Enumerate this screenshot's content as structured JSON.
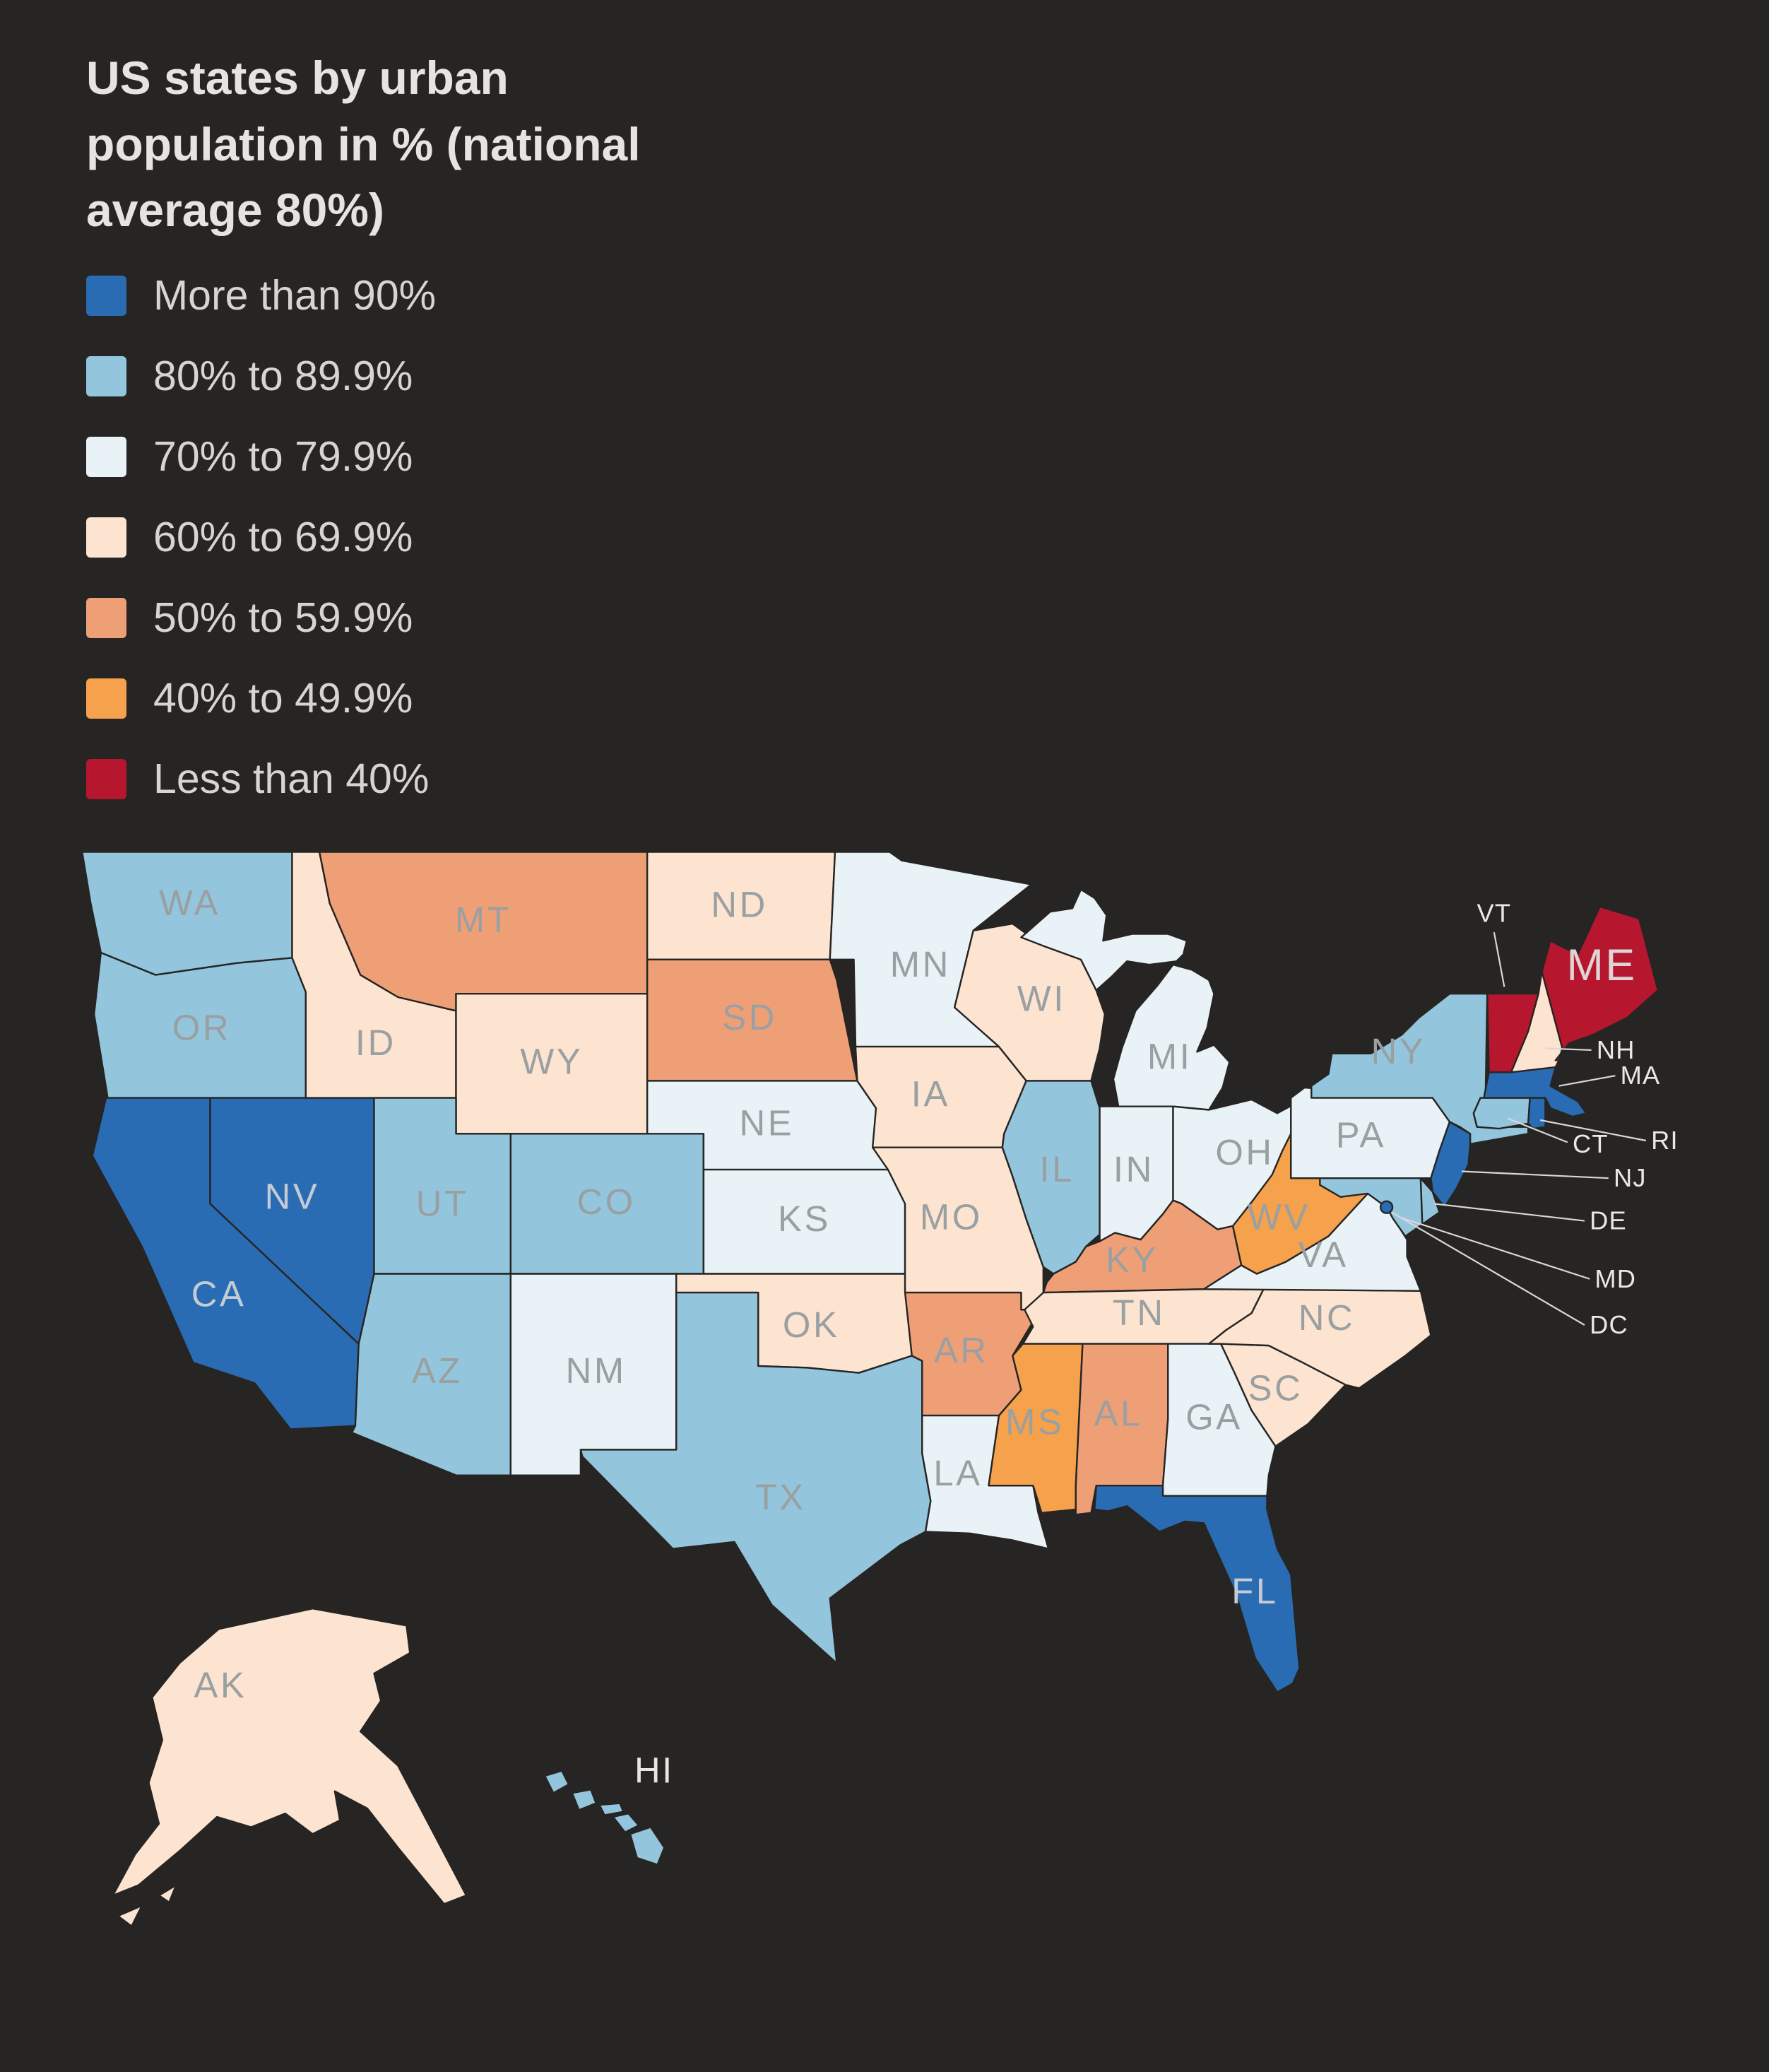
{
  "title": "US states by urban population in % (national average 80%)",
  "colors": {
    "background": "#272523",
    "title_text": "#e6e4e1",
    "legend_text": "#d7d5d2",
    "state_border": "#272523",
    "label_on_light": "#9aa0a2",
    "label_on_dark": "#c3cbd3",
    "leader_label": "#eae8e5",
    "leader_line": "#d8d8d8"
  },
  "legend": [
    {
      "label": "More than 90%",
      "color": "#2a6cb3"
    },
    {
      "label": "80% to 89.9%",
      "color": "#93c5dd"
    },
    {
      "label": "70% to 79.9%",
      "color": "#e9f3f7"
    },
    {
      "label": "60% to 69.9%",
      "color": "#fce4d1"
    },
    {
      "label": "50% to 59.9%",
      "color": "#ef9f76"
    },
    {
      "label": "40% to 49.9%",
      "color": "#f6a14b"
    },
    {
      "label": "Less than 40%",
      "color": "#b6172f"
    }
  ],
  "chart_data": {
    "type": "heatmap",
    "subtype": "choropleth-us-states",
    "title": "US states by urban population in % (national average 80%)",
    "national_average_pct": 80,
    "categories": [
      "More than 90%",
      "80% to 89.9%",
      "70% to 79.9%",
      "60% to 69.9%",
      "50% to 59.9%",
      "40% to 49.9%",
      "Less than 40%"
    ],
    "states": [
      {
        "abbr": "WA",
        "category": "80% to 89.9%"
      },
      {
        "abbr": "OR",
        "category": "80% to 89.9%"
      },
      {
        "abbr": "CA",
        "category": "More than 90%"
      },
      {
        "abbr": "NV",
        "category": "More than 90%"
      },
      {
        "abbr": "ID",
        "category": "60% to 69.9%"
      },
      {
        "abbr": "MT",
        "category": "50% to 59.9%"
      },
      {
        "abbr": "WY",
        "category": "60% to 69.9%"
      },
      {
        "abbr": "UT",
        "category": "80% to 89.9%"
      },
      {
        "abbr": "CO",
        "category": "80% to 89.9%"
      },
      {
        "abbr": "AZ",
        "category": "80% to 89.9%"
      },
      {
        "abbr": "NM",
        "category": "70% to 79.9%"
      },
      {
        "abbr": "ND",
        "category": "60% to 69.9%"
      },
      {
        "abbr": "SD",
        "category": "50% to 59.9%"
      },
      {
        "abbr": "NE",
        "category": "70% to 79.9%"
      },
      {
        "abbr": "KS",
        "category": "70% to 79.9%"
      },
      {
        "abbr": "OK",
        "category": "60% to 69.9%"
      },
      {
        "abbr": "TX",
        "category": "80% to 89.9%"
      },
      {
        "abbr": "MN",
        "category": "70% to 79.9%"
      },
      {
        "abbr": "IA",
        "category": "60% to 69.9%"
      },
      {
        "abbr": "MO",
        "category": "60% to 69.9%"
      },
      {
        "abbr": "AR",
        "category": "50% to 59.9%"
      },
      {
        "abbr": "LA",
        "category": "70% to 79.9%"
      },
      {
        "abbr": "WI",
        "category": "60% to 69.9%"
      },
      {
        "abbr": "IL",
        "category": "80% to 89.9%"
      },
      {
        "abbr": "MI",
        "category": "70% to 79.9%"
      },
      {
        "abbr": "IN",
        "category": "70% to 79.9%"
      },
      {
        "abbr": "OH",
        "category": "70% to 79.9%"
      },
      {
        "abbr": "KY",
        "category": "50% to 59.9%"
      },
      {
        "abbr": "TN",
        "category": "60% to 69.9%"
      },
      {
        "abbr": "MS",
        "category": "40% to 49.9%"
      },
      {
        "abbr": "AL",
        "category": "50% to 59.9%"
      },
      {
        "abbr": "GA",
        "category": "70% to 79.9%"
      },
      {
        "abbr": "FL",
        "category": "More than 90%"
      },
      {
        "abbr": "SC",
        "category": "60% to 69.9%"
      },
      {
        "abbr": "NC",
        "category": "60% to 69.9%"
      },
      {
        "abbr": "VA",
        "category": "70% to 79.9%"
      },
      {
        "abbr": "WV",
        "category": "40% to 49.9%"
      },
      {
        "abbr": "PA",
        "category": "70% to 79.9%"
      },
      {
        "abbr": "NY",
        "category": "80% to 89.9%"
      },
      {
        "abbr": "NJ",
        "category": "More than 90%"
      },
      {
        "abbr": "DE",
        "category": "80% to 89.9%"
      },
      {
        "abbr": "MD",
        "category": "80% to 89.9%"
      },
      {
        "abbr": "DC",
        "category": "More than 90%"
      },
      {
        "abbr": "CT",
        "category": "80% to 89.9%"
      },
      {
        "abbr": "RI",
        "category": "More than 90%"
      },
      {
        "abbr": "MA",
        "category": "More than 90%"
      },
      {
        "abbr": "VT",
        "category": "Less than 40%"
      },
      {
        "abbr": "NH",
        "category": "60% to 69.9%"
      },
      {
        "abbr": "ME",
        "category": "Less than 40%"
      },
      {
        "abbr": "AK",
        "category": "60% to 69.9%"
      },
      {
        "abbr": "HI",
        "category": "80% to 89.9%"
      }
    ]
  }
}
